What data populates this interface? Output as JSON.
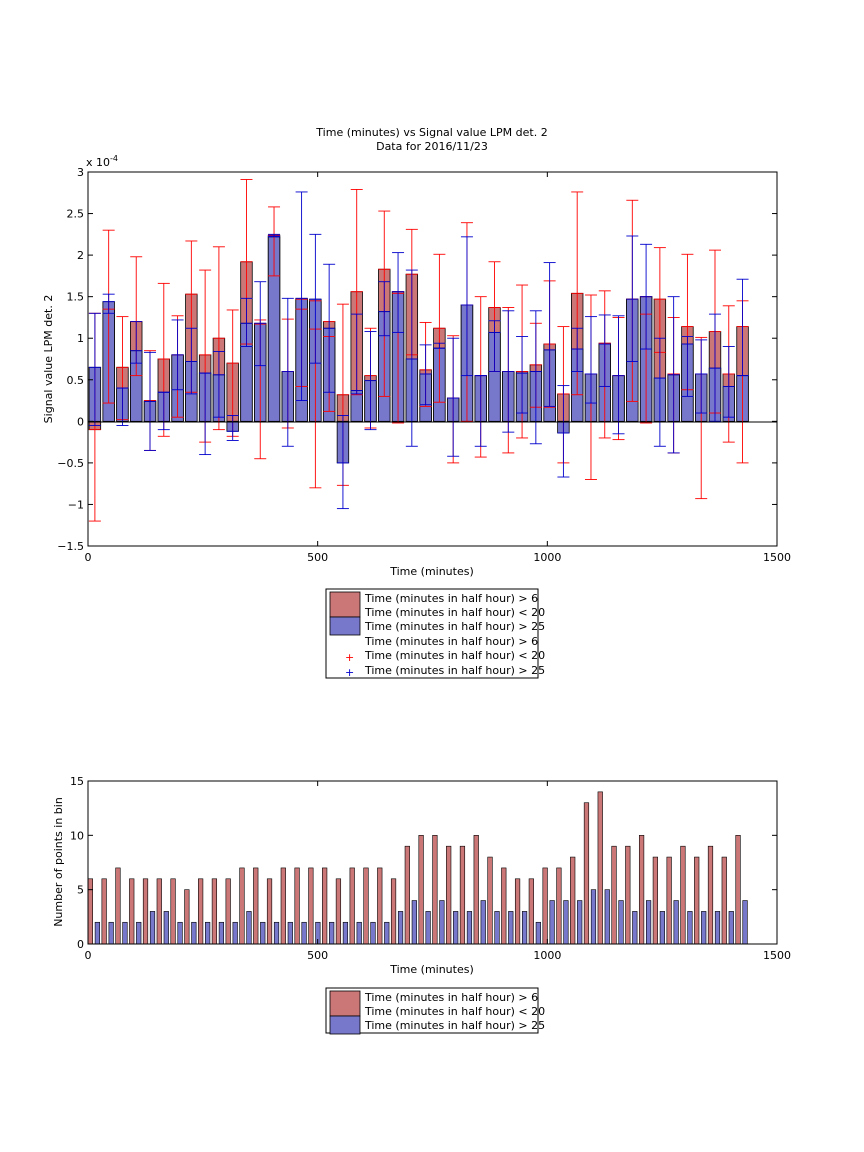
{
  "chart_data": [
    {
      "type": "bar",
      "title": "Time (minutes) vs Signal value LPM det. 2",
      "subtitle": "Data for 2016/11/23",
      "xlabel": "Time (minutes)",
      "ylabel": "Signal value LPM det. 2",
      "y_exponent_label": "x 10",
      "y_exponent_power": "-4",
      "xlim": [
        0,
        1500
      ],
      "ylim": [
        -1.5,
        3
      ],
      "xticks": [
        "0",
        "500",
        "1000",
        "1500"
      ],
      "yticks": [
        "−1.5",
        "−1",
        "−0.5",
        "0",
        "0.5",
        "1",
        "1.5",
        "2",
        "2.5",
        "3"
      ],
      "grid": false,
      "legend_position": "below",
      "legend": [
        "Time (minutes in half hour) > 6",
        "Time (minutes in half hour) < 20",
        "Time (minutes in half hour) > 25",
        "Time (minutes in half hour) > 6",
        "Time (minutes in half hour) < 20",
        "Time (minutes in half hour) > 25"
      ],
      "colors": {
        "red_series": "#cc7777",
        "blue_series": "#7777cc",
        "red_error": "#ff0000",
        "blue_error": "#0000cc"
      },
      "x": [
        15,
        45,
        75,
        105,
        135,
        165,
        195,
        225,
        255,
        285,
        315,
        345,
        375,
        405,
        435,
        465,
        495,
        525,
        555,
        585,
        615,
        645,
        675,
        705,
        735,
        765,
        795,
        825,
        855,
        885,
        915,
        945,
        975,
        1005,
        1035,
        1065,
        1095,
        1125,
        1155,
        1185,
        1215,
        1245,
        1275,
        1305,
        1335,
        1365,
        1395,
        1425
      ],
      "series": [
        {
          "name": "Time (minutes in half hour) > 6 Time (minutes in half hour) < 20",
          "values": [
            -0.1,
            1.35,
            0.65,
            1.2,
            0.25,
            0.75,
            0.8,
            1.53,
            0.8,
            1.0,
            0.7,
            1.92,
            1.17,
            2.24,
            0.6,
            1.47,
            1.45,
            1.2,
            0.32,
            1.56,
            0.55,
            1.83,
            1.56,
            1.77,
            0.62,
            1.12,
            0.28,
            1.4,
            0.55,
            1.37,
            0.6,
            0.6,
            0.68,
            0.93,
            0.33,
            1.54,
            0.57,
            0.94,
            0.55,
            1.47,
            1.5,
            1.47,
            0.57,
            1.14,
            0.57,
            1.08,
            0.57,
            1.14
          ],
          "err_low": [
            -1.2,
            0.22,
            0.02,
            0.55,
            -0.35,
            -0.18,
            0.05,
            0.35,
            -0.25,
            -0.1,
            -0.18,
            0.93,
            -0.45,
            1.75,
            -0.08,
            0.42,
            -0.8,
            0.12,
            -0.77,
            0.32,
            -0.08,
            0.3,
            -0.02,
            0.8,
            0.18,
            0.23,
            -0.5,
            0.0,
            -0.43,
            0.6,
            -0.38,
            -0.2,
            0.17,
            0.17,
            -0.5,
            0.32,
            -0.7,
            -0.2,
            -0.22,
            0.24,
            -0.02,
            0.83,
            -0.38,
            0.38,
            -0.93,
            0.1,
            -0.25,
            -0.5
          ],
          "err_high": [
            1.3,
            2.3,
            1.26,
            1.98,
            0.85,
            1.66,
            1.27,
            2.17,
            1.82,
            2.1,
            1.34,
            2.91,
            1.22,
            2.58,
            1.23,
            1.35,
            1.11,
            1.02,
            1.41,
            2.79,
            1.12,
            2.53,
            1.54,
            2.31,
            1.19,
            2.01,
            1.03,
            2.39,
            1.5,
            1.92,
            1.37,
            1.64,
            1.18,
            1.69,
            1.14,
            2.76,
            1.52,
            1.57,
            1.25,
            2.66,
            1.29,
            2.09,
            1.25,
            2.01,
            1.01,
            2.06,
            1.39,
            1.45
          ]
        },
        {
          "name": "Time (minutes in half hour) > 25",
          "values": [
            0.65,
            1.44,
            0.4,
            0.85,
            0.24,
            0.35,
            0.8,
            0.72,
            0.58,
            0.56,
            -0.12,
            1.18,
            1.18,
            2.22,
            0.6,
            1.48,
            1.47,
            1.12,
            -0.5,
            0.37,
            0.49,
            1.32,
            1.56,
            0.75,
            0.57,
            0.88,
            0.28,
            1.4,
            0.55,
            1.07,
            0.6,
            0.58,
            0.6,
            0.86,
            -0.14,
            0.87,
            0.57,
            0.93,
            0.55,
            1.47,
            1.5,
            0.52,
            0.56,
            0.93,
            0.57,
            0.64,
            0.42,
            0.55
          ],
          "err_low": [
            -0.05,
            1.3,
            -0.05,
            0.7,
            -0.35,
            -0.1,
            0.38,
            0.33,
            -0.4,
            0.05,
            -0.23,
            0.9,
            0.67,
            2.25,
            -0.3,
            0.25,
            0.7,
            0.35,
            -1.05,
            0.33,
            -0.1,
            1.03,
            1.07,
            -0.3,
            0.2,
            0.88,
            -0.42,
            0.55,
            -0.3,
            0.6,
            -0.13,
            0.1,
            -0.27,
            0.18,
            -0.67,
            0.6,
            0.22,
            0.42,
            -0.15,
            0.72,
            0.87,
            -0.3,
            -0.38,
            0.3,
            0.1,
            0.0,
            0.05,
            0.55
          ],
          "err_high": [
            1.3,
            1.53,
            0.4,
            1.2,
            0.83,
            0.35,
            1.22,
            1.12,
            0.58,
            0.84,
            0.07,
            1.48,
            1.68,
            2.23,
            1.48,
            2.76,
            2.25,
            1.89,
            0.07,
            1.29,
            1.08,
            1.68,
            2.03,
            1.82,
            0.92,
            0.94,
            1.0,
            2.22,
            0.55,
            1.21,
            1.33,
            1.02,
            1.33,
            1.91,
            0.43,
            1.12,
            1.26,
            1.28,
            1.27,
            2.23,
            2.13,
            1.0,
            1.5,
            1.02,
            0.98,
            1.29,
            0.9,
            1.71
          ]
        }
      ]
    },
    {
      "type": "bar",
      "title": "",
      "xlabel": "Time (minutes)",
      "ylabel": "Number of points in bin",
      "xlim": [
        0,
        1500
      ],
      "ylim": [
        0,
        15
      ],
      "xticks": [
        "0",
        "500",
        "1000",
        "1500"
      ],
      "yticks": [
        "0",
        "5",
        "10",
        "15"
      ],
      "grid": false,
      "legend_position": "below",
      "legend": [
        "Time (minutes in half hour) > 6",
        "Time (minutes in half hour) < 20",
        "Time (minutes in half hour) > 25"
      ],
      "x": [
        15,
        45,
        75,
        105,
        135,
        165,
        195,
        225,
        255,
        285,
        315,
        345,
        375,
        405,
        435,
        465,
        495,
        525,
        555,
        585,
        615,
        645,
        675,
        705,
        735,
        765,
        795,
        825,
        855,
        885,
        915,
        945,
        975,
        1005,
        1035,
        1065,
        1095,
        1125,
        1155,
        1185,
        1215,
        1245,
        1275,
        1305,
        1335,
        1365,
        1395,
        1425
      ],
      "series": [
        {
          "name": "Time (minutes in half hour) > 6 Time (minutes in half hour) < 20",
          "values": [
            6,
            6,
            7,
            6,
            6,
            6,
            6,
            5,
            6,
            6,
            6,
            7,
            7,
            6,
            7,
            7,
            7,
            7,
            6,
            7,
            7,
            7,
            6,
            9,
            10,
            10,
            9,
            9,
            10,
            8,
            7,
            6,
            6,
            7,
            7,
            8,
            13,
            14,
            9,
            9,
            10,
            8,
            8,
            9,
            8,
            9,
            8,
            10
          ]
        },
        {
          "name": "Time (minutes in half hour) > 25",
          "values": [
            2,
            2,
            2,
            2,
            3,
            3,
            2,
            2,
            2,
            2,
            2,
            3,
            2,
            2,
            2,
            2,
            2,
            2,
            2,
            2,
            2,
            2,
            3,
            4,
            3,
            4,
            3,
            3,
            4,
            3,
            3,
            3,
            2,
            4,
            4,
            4,
            5,
            5,
            4,
            3,
            4,
            3,
            4,
            3,
            3,
            3,
            3,
            4
          ]
        }
      ]
    }
  ]
}
